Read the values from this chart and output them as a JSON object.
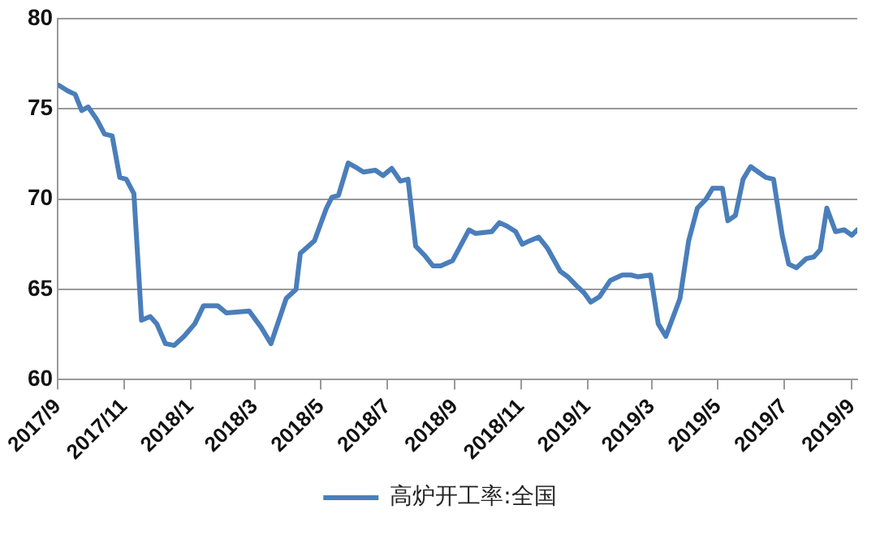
{
  "chart_data": {
    "type": "line",
    "x": [
      "2017-09-02",
      "2017-09-10",
      "2017-09-17",
      "2017-09-23",
      "2017-09-29",
      "2017-10-07",
      "2017-10-14",
      "2017-10-21",
      "2017-10-28",
      "2017-11-03",
      "2017-11-10",
      "2017-11-17",
      "2017-11-25",
      "2017-12-01",
      "2017-12-09",
      "2017-12-17",
      "2017-12-26",
      "2018-01-05",
      "2018-01-13",
      "2018-01-26",
      "2018-02-03",
      "2018-02-24",
      "2018-03-07",
      "2018-03-16",
      "2018-03-30",
      "2018-04-08",
      "2018-04-12",
      "2018-04-25",
      "2018-05-06",
      "2018-05-11",
      "2018-05-17",
      "2018-05-26",
      "2018-06-01",
      "2018-06-09",
      "2018-06-20",
      "2018-06-27",
      "2018-07-05",
      "2018-07-13",
      "2018-07-20",
      "2018-07-27",
      "2018-08-04",
      "2018-08-12",
      "2018-08-19",
      "2018-08-30",
      "2018-09-07",
      "2018-09-14",
      "2018-09-20",
      "2018-10-05",
      "2018-10-12",
      "2018-10-19",
      "2018-10-27",
      "2018-11-02",
      "2018-11-09",
      "2018-11-17",
      "2018-11-25",
      "2018-12-07",
      "2018-12-14",
      "2018-12-22",
      "2018-12-29",
      "2019-01-04",
      "2019-01-12",
      "2019-01-22",
      "2019-02-02",
      "2019-02-10",
      "2019-02-16",
      "2019-02-28",
      "2019-03-07",
      "2019-03-14",
      "2019-03-27",
      "2019-04-04",
      "2019-04-12",
      "2019-04-20",
      "2019-04-26",
      "2019-05-05",
      "2019-05-10",
      "2019-05-17",
      "2019-05-24",
      "2019-05-31",
      "2019-06-07",
      "2019-06-14",
      "2019-06-21",
      "2019-06-29",
      "2019-07-05",
      "2019-07-12",
      "2019-07-21",
      "2019-07-28",
      "2019-08-03",
      "2019-08-09",
      "2019-08-17",
      "2019-08-25",
      "2019-09-01",
      "2019-09-06"
    ],
    "series": [
      {
        "name": "高炉开工率:全国",
        "color": "#4a7ebb",
        "values": [
          76.3,
          76.0,
          75.8,
          74.9,
          75.1,
          74.4,
          73.6,
          73.5,
          71.2,
          71.1,
          70.3,
          63.3,
          63.5,
          63.1,
          62.0,
          61.9,
          62.4,
          63.1,
          64.1,
          64.1,
          63.7,
          63.8,
          62.9,
          62.0,
          64.5,
          65.0,
          67.0,
          67.7,
          69.5,
          70.1,
          70.2,
          72.0,
          71.8,
          71.5,
          71.6,
          71.3,
          71.7,
          71.0,
          71.1,
          67.4,
          66.9,
          66.3,
          66.3,
          66.6,
          67.5,
          68.3,
          68.1,
          68.2,
          68.7,
          68.5,
          68.2,
          67.5,
          67.7,
          67.9,
          67.3,
          66.0,
          65.7,
          65.2,
          64.8,
          64.3,
          64.6,
          65.5,
          65.8,
          65.8,
          65.7,
          65.8,
          63.1,
          62.4,
          64.5,
          67.7,
          69.5,
          70.0,
          70.6,
          70.6,
          68.8,
          69.1,
          71.1,
          71.8,
          71.5,
          71.2,
          71.1,
          68.0,
          66.4,
          66.2,
          66.7,
          66.8,
          67.2,
          69.5,
          68.2,
          68.3,
          68.0,
          68.3
        ]
      }
    ],
    "xlim": [
      "2017-09-01",
      "2019-09-06"
    ],
    "xticks": [
      {
        "value": "2017-09",
        "label": "2017/9"
      },
      {
        "value": "2017-11",
        "label": "2017/11"
      },
      {
        "value": "2018-01",
        "label": "2018/1"
      },
      {
        "value": "2018-03",
        "label": "2018/3"
      },
      {
        "value": "2018-05",
        "label": "2018/5"
      },
      {
        "value": "2018-07",
        "label": "2018/7"
      },
      {
        "value": "2018-09",
        "label": "2018/9"
      },
      {
        "value": "2018-11",
        "label": "2018/11"
      },
      {
        "value": "2019-01",
        "label": "2019/1"
      },
      {
        "value": "2019-03",
        "label": "2019/3"
      },
      {
        "value": "2019-05",
        "label": "2019/5"
      },
      {
        "value": "2019-07",
        "label": "2019/7"
      },
      {
        "value": "2019-09",
        "label": "2019/9"
      }
    ],
    "ylim": [
      60,
      80
    ],
    "yticks": [
      60,
      65,
      70,
      75,
      80
    ],
    "grid": "y",
    "legend": "bottom",
    "marker": "none",
    "line_style": "solid"
  }
}
